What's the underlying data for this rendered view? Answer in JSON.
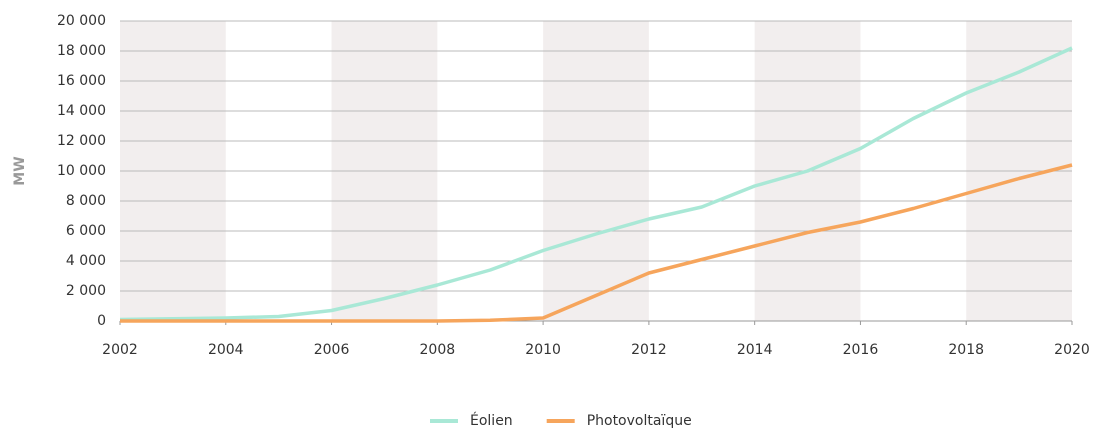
{
  "chart_data": {
    "type": "line",
    "y_label": "MW",
    "x": [
      2002,
      2003,
      2004,
      2005,
      2006,
      2007,
      2008,
      2009,
      2010,
      2011,
      2012,
      2013,
      2014,
      2015,
      2016,
      2017,
      2018,
      2019,
      2020
    ],
    "series": [
      {
        "name": "Éolien",
        "color": "#a9e8d6",
        "values": [
          100,
          150,
          200,
          300,
          700,
          1500,
          2400,
          3400,
          4700,
          5800,
          6800,
          7600,
          9000,
          10000,
          11500,
          13500,
          15200,
          16600,
          18200
        ]
      },
      {
        "name": "Photovoltaïque",
        "color": "#f6a55c",
        "values": [
          0,
          0,
          0,
          0,
          0,
          0,
          0,
          50,
          200,
          1700,
          3200,
          4100,
          5000,
          5900,
          6600,
          7500,
          8500,
          9500,
          10400
        ]
      }
    ],
    "xlim": [
      2002,
      2020
    ],
    "xticks": [
      2002,
      2004,
      2006,
      2008,
      2010,
      2012,
      2014,
      2016,
      2018,
      2020
    ],
    "ylim": [
      0,
      20000
    ],
    "yticks": [
      0,
      {
        "value": 2000,
        "label": "2 000"
      },
      {
        "value": 4000,
        "label": "4 000"
      },
      {
        "value": 6000,
        "label": "6 000"
      },
      {
        "value": 8000,
        "label": "8 000"
      },
      {
        "value": 10000,
        "label": "10 000"
      },
      {
        "value": 12000,
        "label": "12 000"
      },
      {
        "value": 14000,
        "label": "14 000"
      },
      {
        "value": 16000,
        "label": "16 000"
      },
      {
        "value": 18000,
        "label": "18 000"
      },
      {
        "value": 20000,
        "label": "20 000"
      }
    ],
    "grid": true,
    "legend": "bottom"
  }
}
